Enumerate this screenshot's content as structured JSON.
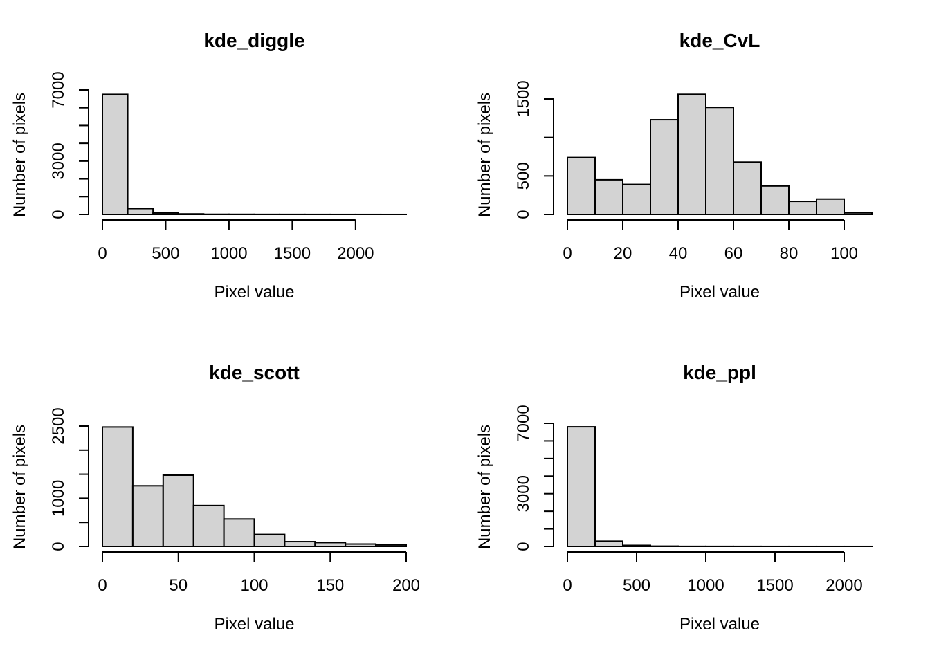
{
  "chart_data": [
    {
      "type": "bar",
      "title": "kde_diggle",
      "xlabel": "Pixel value",
      "ylabel": "Number of pixels",
      "bin_edges": [
        0,
        200,
        400,
        600,
        800,
        1000,
        1200,
        1400,
        1600,
        1800,
        2000,
        2200,
        2400
      ],
      "values": [
        6750,
        330,
        80,
        30,
        10,
        8,
        5,
        4,
        3,
        2,
        2,
        1
      ],
      "xlim": [
        0,
        2400
      ],
      "ylim": [
        0,
        7000
      ],
      "x_ticks": [
        0,
        500,
        1000,
        1500,
        2000
      ],
      "y_ticks": [
        0,
        1000,
        2000,
        3000,
        4000,
        5000,
        6000,
        7000
      ],
      "y_tick_labels": [
        "0",
        "",
        "",
        "3000",
        "",
        "",
        "",
        "7000"
      ],
      "grid": false
    },
    {
      "type": "bar",
      "title": "kde_CvL",
      "xlabel": "Pixel value",
      "ylabel": "Number of pixels",
      "bin_edges": [
        0,
        10,
        20,
        30,
        40,
        50,
        60,
        70,
        80,
        90,
        100,
        110
      ],
      "values": [
        740,
        450,
        390,
        1230,
        1560,
        1390,
        680,
        370,
        170,
        200,
        20
      ],
      "xlim": [
        0,
        110
      ],
      "ylim": [
        0,
        1500
      ],
      "x_ticks": [
        0,
        20,
        40,
        60,
        80,
        100
      ],
      "y_ticks": [
        0,
        500,
        1000,
        1500
      ],
      "y_tick_labels": [
        "0",
        "500",
        "",
        "1500"
      ],
      "grid": false
    },
    {
      "type": "bar",
      "title": "kde_scott",
      "xlabel": "Pixel value",
      "ylabel": "Number of pixels",
      "bin_edges": [
        0,
        20,
        40,
        60,
        80,
        100,
        120,
        140,
        160,
        180,
        200
      ],
      "values": [
        2480,
        1260,
        1480,
        850,
        570,
        250,
        100,
        80,
        50,
        30
      ],
      "xlim": [
        0,
        200
      ],
      "ylim": [
        0,
        2500
      ],
      "x_ticks": [
        0,
        50,
        100,
        150,
        200
      ],
      "y_ticks": [
        0,
        500,
        1000,
        1500,
        2000,
        2500
      ],
      "y_tick_labels": [
        "0",
        "",
        "1000",
        "",
        "",
        "2500"
      ],
      "grid": false
    },
    {
      "type": "bar",
      "title": "kde_ppl",
      "xlabel": "Pixel value",
      "ylabel": "Number of pixels",
      "bin_edges": [
        0,
        200,
        400,
        600,
        800,
        1000,
        1200,
        1400,
        1600,
        1800,
        2000,
        2200
      ],
      "values": [
        6800,
        300,
        60,
        15,
        5,
        4,
        3,
        2,
        1,
        1,
        1
      ],
      "xlim": [
        0,
        2200
      ],
      "ylim": [
        0,
        7000
      ],
      "x_ticks": [
        0,
        500,
        1000,
        1500,
        2000
      ],
      "y_ticks": [
        0,
        1000,
        2000,
        3000,
        4000,
        5000,
        6000,
        7000
      ],
      "y_tick_labels": [
        "0",
        "",
        "",
        "3000",
        "",
        "",
        "",
        "7000"
      ],
      "grid": false
    }
  ],
  "colors": {
    "bar_fill": "#d3d3d3",
    "bar_stroke": "#000000",
    "axis": "#000000"
  }
}
